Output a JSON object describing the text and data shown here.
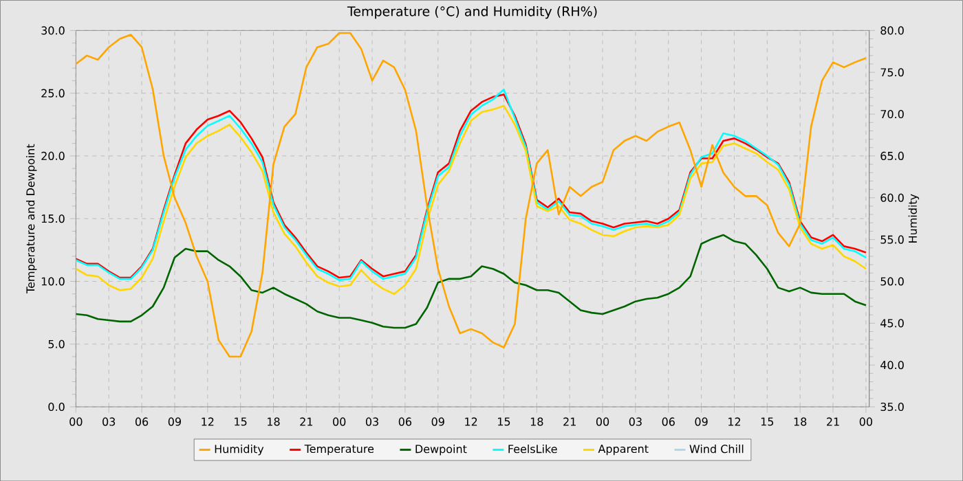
{
  "chart_data": {
    "type": "line",
    "title": "Temperature (°C) and Humidity (RH%)",
    "ylabel": "Temperature and Dewpoint",
    "y2label": "Humidity",
    "x": [
      0,
      1,
      2,
      3,
      4,
      5,
      6,
      7,
      8,
      9,
      10,
      11,
      12,
      13,
      14,
      15,
      16,
      17,
      18,
      19,
      20,
      21,
      22,
      23,
      24,
      25,
      26,
      27,
      28,
      29,
      30,
      31,
      32,
      33,
      34,
      35,
      36,
      37,
      38,
      39,
      40,
      41,
      42,
      43,
      44,
      45,
      46,
      47,
      48,
      49,
      50,
      51,
      52,
      53,
      54,
      55,
      56,
      57,
      58,
      59,
      60,
      61,
      62,
      63,
      64,
      65,
      66,
      67,
      68,
      69,
      70,
      71,
      72
    ],
    "xlim": [
      0,
      72.3
    ],
    "xticks": [
      {
        "value": 0,
        "label": "00"
      },
      {
        "value": 3,
        "label": "03"
      },
      {
        "value": 6,
        "label": "06"
      },
      {
        "value": 9,
        "label": "09"
      },
      {
        "value": 12,
        "label": "12"
      },
      {
        "value": 15,
        "label": "15"
      },
      {
        "value": 18,
        "label": "18"
      },
      {
        "value": 21,
        "label": "21"
      },
      {
        "value": 24,
        "label": "00"
      },
      {
        "value": 27,
        "label": "03"
      },
      {
        "value": 30,
        "label": "06"
      },
      {
        "value": 33,
        "label": "09"
      },
      {
        "value": 36,
        "label": "12"
      },
      {
        "value": 39,
        "label": "15"
      },
      {
        "value": 42,
        "label": "18"
      },
      {
        "value": 45,
        "label": "21"
      },
      {
        "value": 48,
        "label": "00"
      },
      {
        "value": 51,
        "label": "03"
      },
      {
        "value": 54,
        "label": "06"
      },
      {
        "value": 57,
        "label": "09"
      },
      {
        "value": 60,
        "label": "12"
      },
      {
        "value": 63,
        "label": "15"
      },
      {
        "value": 66,
        "label": "18"
      },
      {
        "value": 69,
        "label": "21"
      },
      {
        "value": 72,
        "label": "00"
      }
    ],
    "ylim": [
      0,
      30
    ],
    "yticks": [
      {
        "value": 0,
        "label": "0.0"
      },
      {
        "value": 5,
        "label": "5.0"
      },
      {
        "value": 10,
        "label": "10.0"
      },
      {
        "value": 15,
        "label": "15.0"
      },
      {
        "value": 20,
        "label": "20.0"
      },
      {
        "value": 25,
        "label": "25.0"
      },
      {
        "value": 30,
        "label": "30.0"
      }
    ],
    "y2lim": [
      35,
      80
    ],
    "y2ticks": [
      {
        "value": 35,
        "label": "35.0"
      },
      {
        "value": 40,
        "label": "40.0"
      },
      {
        "value": 45,
        "label": "45.0"
      },
      {
        "value": 50,
        "label": "50.0"
      },
      {
        "value": 55,
        "label": "55.0"
      },
      {
        "value": 60,
        "label": "60.0"
      },
      {
        "value": 65,
        "label": "65.0"
      },
      {
        "value": 70,
        "label": "70.0"
      },
      {
        "value": 75,
        "label": "75.0"
      },
      {
        "value": 80,
        "label": "80.0"
      }
    ],
    "grid": true,
    "legend": "bottom",
    "marker": "none",
    "line_style": "solid",
    "series": [
      {
        "name": "Humidity",
        "color": "#ffa500",
        "axis": "y2",
        "values": [
          76,
          77,
          76.5,
          78,
          79,
          79.5,
          78,
          73,
          65,
          60,
          57,
          53,
          50,
          43,
          41,
          41,
          44,
          51,
          64,
          68.5,
          70,
          75.6,
          78,
          78.4,
          79.7,
          79.7,
          77.8,
          74,
          76.4,
          75.6,
          72.9,
          68,
          59,
          51.5,
          47,
          43.8,
          44.3,
          43.8,
          42.7,
          42.1,
          44.9,
          57.5,
          64.1,
          65.7,
          58,
          61.3,
          60.2,
          61.3,
          61.9,
          65.7,
          66.8,
          67.4,
          66.8,
          67.9,
          68.5,
          69,
          65.7,
          61.3,
          66.3,
          63,
          61.3,
          60.2,
          60.2,
          59.1,
          55.8,
          54.2,
          56.9,
          68.5,
          74,
          76.2,
          75.6,
          76.2,
          76.7
        ]
      },
      {
        "name": "Temperature",
        "color": "#ff0000",
        "values": [
          11.8,
          11.4,
          11.4,
          10.8,
          10.3,
          10.3,
          11.2,
          12.6,
          15.7,
          18.5,
          21.0,
          22.1,
          22.9,
          23.2,
          23.6,
          22.7,
          21.4,
          19.9,
          16.3,
          14.5,
          13.5,
          12.3,
          11.2,
          10.8,
          10.3,
          10.4,
          11.7,
          11.0,
          10.4,
          10.6,
          10.8,
          12.1,
          15.7,
          18.7,
          19.4,
          22.0,
          23.6,
          24.3,
          24.7,
          24.9,
          23.2,
          20.9,
          16.5,
          15.9,
          16.6,
          15.5,
          15.4,
          14.8,
          14.6,
          14.3,
          14.6,
          14.7,
          14.8,
          14.6,
          15.0,
          15.7,
          18.7,
          19.8,
          19.8,
          21.2,
          21.4,
          21.0,
          20.5,
          19.9,
          19.4,
          17.9,
          14.8,
          13.5,
          13.2,
          13.7,
          12.8,
          12.6,
          12.3
        ]
      },
      {
        "name": "Dewpoint",
        "color": "#006400",
        "values": [
          7.4,
          7.3,
          7.0,
          6.9,
          6.8,
          6.8,
          7.3,
          8.0,
          9.5,
          11.9,
          12.6,
          12.4,
          12.4,
          11.7,
          11.2,
          10.4,
          9.3,
          9.1,
          9.5,
          9.0,
          8.6,
          8.2,
          7.6,
          7.3,
          7.1,
          7.1,
          6.9,
          6.7,
          6.4,
          6.3,
          6.3,
          6.6,
          7.9,
          9.9,
          10.2,
          10.2,
          10.4,
          11.2,
          11.0,
          10.6,
          9.9,
          9.7,
          9.3,
          9.3,
          9.1,
          8.4,
          7.7,
          7.5,
          7.4,
          7.7,
          8.0,
          8.4,
          8.6,
          8.7,
          9.0,
          9.5,
          10.4,
          13.0,
          13.4,
          13.7,
          13.2,
          13.0,
          12.1,
          11.0,
          9.5,
          9.2,
          9.5,
          9.1,
          9.0,
          9.0,
          9.0,
          8.4,
          8.1
        ]
      },
      {
        "name": "FeelsLike",
        "color": "#00ffff",
        "values": [
          11.7,
          11.3,
          11.3,
          10.7,
          10.2,
          10.2,
          11.1,
          12.5,
          15.5,
          18.3,
          20.5,
          21.6,
          22.4,
          22.8,
          23.2,
          22.2,
          21.0,
          19.5,
          16.1,
          14.3,
          13.3,
          12.1,
          11.0,
          10.6,
          10.1,
          10.2,
          11.6,
          10.8,
          10.2,
          10.4,
          10.6,
          11.9,
          15.5,
          18.4,
          19.1,
          21.6,
          23.3,
          24.0,
          24.5,
          25.3,
          23.0,
          20.7,
          16.3,
          15.7,
          16.4,
          15.3,
          15.2,
          14.6,
          14.4,
          14.1,
          14.4,
          14.5,
          14.6,
          14.4,
          14.8,
          15.5,
          18.5,
          19.9,
          20.2,
          21.8,
          21.6,
          21.2,
          20.6,
          20.0,
          19.3,
          17.7,
          14.6,
          13.3,
          13.0,
          13.5,
          12.6,
          12.4,
          11.9
        ]
      },
      {
        "name": "Apparent",
        "color": "#ffd700",
        "values": [
          11.0,
          10.5,
          10.4,
          9.7,
          9.3,
          9.4,
          10.3,
          11.8,
          14.8,
          17.6,
          19.9,
          21.0,
          21.6,
          22.0,
          22.5,
          21.5,
          20.3,
          18.8,
          15.5,
          13.8,
          12.8,
          11.5,
          10.4,
          9.9,
          9.6,
          9.7,
          10.9,
          10.0,
          9.4,
          9.0,
          9.7,
          11.0,
          14.8,
          17.7,
          18.8,
          21.0,
          22.8,
          23.5,
          23.7,
          24.0,
          22.5,
          20.4,
          16.0,
          15.6,
          16.0,
          14.9,
          14.6,
          14.1,
          13.7,
          13.6,
          14.0,
          14.3,
          14.4,
          14.3,
          14.5,
          15.3,
          18.2,
          19.4,
          19.5,
          20.8,
          21.0,
          20.6,
          20.2,
          19.5,
          18.9,
          17.3,
          14.3,
          13.0,
          12.6,
          12.9,
          12.0,
          11.6,
          11.0
        ]
      },
      {
        "name": "Wind Chill",
        "color": "#add8e6",
        "values": [
          null,
          null,
          null,
          null,
          null,
          null,
          null,
          null,
          null,
          null,
          null,
          null,
          null,
          null,
          null,
          null,
          null,
          null,
          null,
          null,
          null,
          null,
          null,
          null,
          null,
          null,
          null,
          null,
          null,
          null,
          null,
          null,
          null,
          null,
          null,
          null,
          null,
          null,
          null,
          null,
          null,
          null,
          null,
          null,
          null,
          null,
          null,
          null,
          null,
          null,
          null,
          null,
          null,
          null,
          null,
          null,
          null,
          null,
          null,
          null,
          null,
          null,
          null,
          null,
          null,
          null,
          null,
          null,
          null,
          null,
          null,
          null,
          null
        ]
      }
    ]
  }
}
